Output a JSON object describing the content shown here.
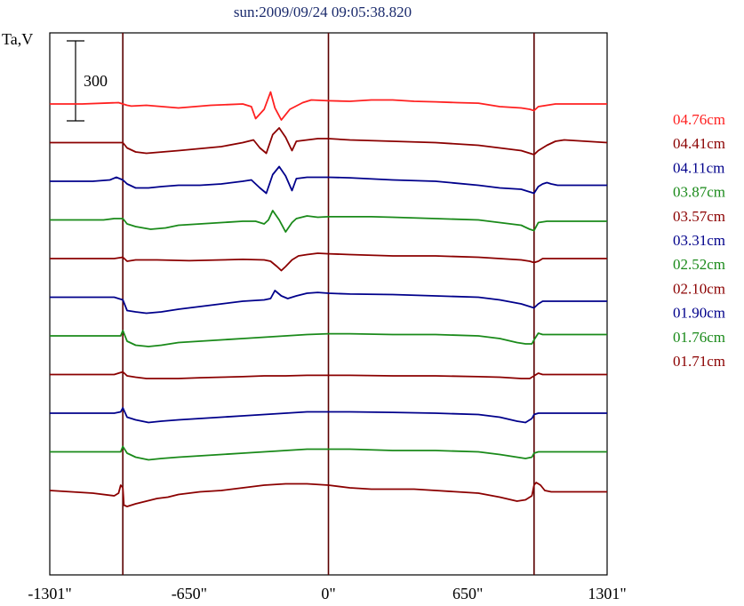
{
  "chart_data": {
    "type": "line",
    "title": "sun:2009/09/24 09:05:38.820",
    "ylabel": "Ta,V",
    "scale_bar_label": "300",
    "scale_bar_value": 300,
    "x_ticks": [
      {
        "value": -1301,
        "label": "-1301\""
      },
      {
        "value": -650,
        "label": "-650\""
      },
      {
        "value": 0,
        "label": "0\""
      },
      {
        "value": 650,
        "label": "650\""
      },
      {
        "value": 1301,
        "label": "1301\""
      }
    ],
    "xlim": [
      -1301,
      1301
    ],
    "vertical_lines": [
      -960,
      0,
      960
    ],
    "grid": false,
    "legend_position": "right",
    "series": [
      {
        "name": "04.76cm",
        "color": "#ff2020",
        "x": [
          -1301,
          -1150,
          -980,
          -940,
          -920,
          -850,
          -700,
          -550,
          -400,
          -360,
          -340,
          -300,
          -270,
          -250,
          -220,
          -180,
          -120,
          -80,
          0,
          100,
          200,
          300,
          400,
          500,
          600,
          700,
          800,
          900,
          940,
          960,
          980,
          1060,
          1301
        ],
        "y": [
          0,
          0,
          5,
          -5,
          -8,
          -5,
          -15,
          -5,
          0,
          -10,
          -55,
          -20,
          45,
          -15,
          -60,
          -20,
          5,
          15,
          12,
          10,
          15,
          15,
          10,
          8,
          5,
          3,
          -10,
          -15,
          -20,
          -25,
          -10,
          0,
          0
        ]
      },
      {
        "name": "04.41cm",
        "color": "#8b0000",
        "x": [
          -1301,
          -1100,
          -960,
          -940,
          -900,
          -850,
          -700,
          -500,
          -400,
          -350,
          -320,
          -290,
          -260,
          -230,
          -200,
          -170,
          -150,
          -100,
          -50,
          0,
          100,
          300,
          500,
          700,
          800,
          900,
          940,
          960,
          980,
          1020,
          1060,
          1100,
          1301
        ],
        "y": [
          0,
          0,
          0,
          -20,
          -35,
          -40,
          -30,
          -15,
          0,
          10,
          -20,
          -40,
          30,
          55,
          20,
          -30,
          5,
          10,
          15,
          15,
          10,
          5,
          0,
          -10,
          -20,
          -30,
          -40,
          -45,
          -30,
          -10,
          5,
          10,
          0
        ]
      },
      {
        "name": "04.11cm",
        "color": "#00008b",
        "x": [
          -1301,
          -1100,
          -1020,
          -990,
          -960,
          -940,
          -900,
          -840,
          -780,
          -700,
          -600,
          -500,
          -400,
          -360,
          -320,
          -290,
          -260,
          -230,
          -200,
          -170,
          -150,
          -100,
          -50,
          0,
          100,
          300,
          500,
          700,
          800,
          900,
          940,
          960,
          980,
          1000,
          1020,
          1040,
          1070,
          1301
        ],
        "y": [
          0,
          0,
          5,
          15,
          5,
          -10,
          -25,
          -25,
          -20,
          -15,
          -15,
          -10,
          0,
          5,
          -25,
          -45,
          25,
          55,
          20,
          -35,
          10,
          15,
          15,
          15,
          13,
          5,
          0,
          -15,
          -25,
          -30,
          -40,
          -45,
          -20,
          -10,
          -5,
          -10,
          -15,
          -15
        ]
      },
      {
        "name": "03.87cm",
        "color": "#1a8a1a",
        "x": [
          -1301,
          -1050,
          -1000,
          -960,
          -940,
          -900,
          -830,
          -760,
          -700,
          -600,
          -500,
          -400,
          -340,
          -300,
          -280,
          -260,
          -230,
          -200,
          -170,
          -150,
          -100,
          -50,
          0,
          100,
          200,
          300,
          500,
          700,
          800,
          900,
          940,
          960,
          980,
          1020,
          1301
        ],
        "y": [
          0,
          0,
          5,
          5,
          -15,
          -25,
          -35,
          -30,
          -20,
          -15,
          -10,
          -5,
          -5,
          -15,
          0,
          35,
          0,
          -45,
          -10,
          5,
          15,
          10,
          12,
          12,
          12,
          10,
          5,
          0,
          -10,
          -20,
          -35,
          -40,
          -10,
          -5,
          -5
        ]
      },
      {
        "name": "03.57cm",
        "color": "#8b0000",
        "x": [
          -1301,
          -1000,
          -960,
          -940,
          -900,
          -800,
          -650,
          -500,
          -400,
          -300,
          -270,
          -240,
          -220,
          -200,
          -170,
          -140,
          -100,
          -50,
          0,
          100,
          300,
          500,
          700,
          800,
          900,
          940,
          960,
          980,
          1000,
          1301
        ],
        "y": [
          0,
          0,
          5,
          -10,
          -5,
          -5,
          -8,
          -5,
          -3,
          -5,
          -10,
          -30,
          -45,
          -30,
          -5,
          10,
          15,
          20,
          18,
          15,
          10,
          10,
          5,
          0,
          -5,
          -10,
          -15,
          -10,
          0,
          0
        ]
      },
      {
        "name": "03.31cm",
        "color": "#00008b",
        "x": [
          -1301,
          -1000,
          -960,
          -940,
          -900,
          -850,
          -780,
          -700,
          -600,
          -500,
          -400,
          -300,
          -270,
          -250,
          -220,
          -190,
          -150,
          -100,
          -50,
          0,
          100,
          300,
          500,
          700,
          800,
          900,
          940,
          960,
          980,
          1000,
          1301
        ],
        "y": [
          0,
          0,
          -10,
          -50,
          -55,
          -60,
          -55,
          -45,
          -35,
          -25,
          -15,
          -10,
          -5,
          25,
          5,
          -5,
          5,
          15,
          18,
          15,
          12,
          10,
          5,
          0,
          -10,
          -25,
          -35,
          -40,
          -25,
          -15,
          -15
        ]
      },
      {
        "name": "02.52cm",
        "color": "#1a8a1a",
        "x": [
          -1301,
          -1000,
          -970,
          -960,
          -940,
          -900,
          -840,
          -780,
          -700,
          -600,
          -500,
          -400,
          -300,
          -200,
          -100,
          0,
          100,
          300,
          500,
          700,
          800,
          880,
          920,
          950,
          960,
          980,
          1000,
          1301
        ],
        "y": [
          0,
          0,
          0,
          20,
          -20,
          -35,
          -40,
          -35,
          -25,
          -20,
          -15,
          -10,
          -5,
          0,
          5,
          8,
          8,
          5,
          5,
          0,
          -10,
          -25,
          -30,
          -30,
          -15,
          10,
          5,
          5
        ]
      },
      {
        "name": "02.10cm",
        "color": "#8b0000",
        "x": [
          -1301,
          -1000,
          -960,
          -940,
          -900,
          -850,
          -800,
          -700,
          -600,
          -500,
          -400,
          -300,
          -200,
          -100,
          0,
          100,
          300,
          500,
          700,
          800,
          900,
          940,
          960,
          980,
          1000,
          1301
        ],
        "y": [
          0,
          0,
          10,
          -5,
          -10,
          -15,
          -15,
          -15,
          -12,
          -10,
          -8,
          -5,
          -5,
          -3,
          -3,
          -3,
          -5,
          -5,
          -8,
          -10,
          -15,
          -15,
          -5,
          5,
          0,
          0
        ]
      },
      {
        "name": "01.90cm",
        "color": "#00008b",
        "x": [
          -1301,
          -1000,
          -970,
          -960,
          -940,
          -900,
          -840,
          -780,
          -700,
          -600,
          -500,
          -400,
          -300,
          -200,
          -100,
          0,
          100,
          300,
          500,
          700,
          800,
          880,
          920,
          950,
          960,
          980,
          1000,
          1301
        ],
        "y": [
          0,
          0,
          5,
          20,
          -15,
          -25,
          -35,
          -30,
          -25,
          -20,
          -15,
          -10,
          -5,
          0,
          5,
          5,
          5,
          3,
          0,
          -5,
          -15,
          -30,
          -35,
          -20,
          -5,
          0,
          0,
          0
        ]
      },
      {
        "name": "01.76cm",
        "color": "#1a8a1a",
        "x": [
          -1301,
          -1000,
          -970,
          -960,
          -940,
          -900,
          -840,
          -780,
          -700,
          -600,
          -500,
          -400,
          -300,
          -200,
          -100,
          0,
          100,
          300,
          500,
          700,
          800,
          880,
          920,
          950,
          960,
          980,
          1000,
          1301
        ],
        "y": [
          0,
          0,
          0,
          20,
          -5,
          -20,
          -30,
          -25,
          -20,
          -15,
          -10,
          -5,
          0,
          5,
          10,
          10,
          10,
          5,
          5,
          0,
          -10,
          -20,
          -25,
          -20,
          -5,
          0,
          0,
          0
        ]
      },
      {
        "name": "01.71cm",
        "color": "#8b0000",
        "x": [
          -1301,
          -1200,
          -1100,
          -1000,
          -980,
          -970,
          -960,
          -955,
          -940,
          -900,
          -850,
          -800,
          -750,
          -700,
          -650,
          -600,
          -500,
          -400,
          -300,
          -200,
          -100,
          0,
          100,
          200,
          300,
          400,
          500,
          600,
          700,
          800,
          880,
          920,
          950,
          960,
          970,
          990,
          1010,
          1040,
          1100,
          1200,
          1301
        ],
        "y": [
          0,
          -5,
          -10,
          -20,
          -10,
          20,
          10,
          -55,
          -60,
          -50,
          -40,
          -30,
          -25,
          -15,
          -10,
          -5,
          0,
          10,
          20,
          25,
          25,
          20,
          10,
          5,
          5,
          5,
          0,
          -5,
          -10,
          -25,
          -40,
          -35,
          -20,
          20,
          30,
          20,
          0,
          -5,
          -5,
          -5,
          -5
        ]
      }
    ]
  }
}
